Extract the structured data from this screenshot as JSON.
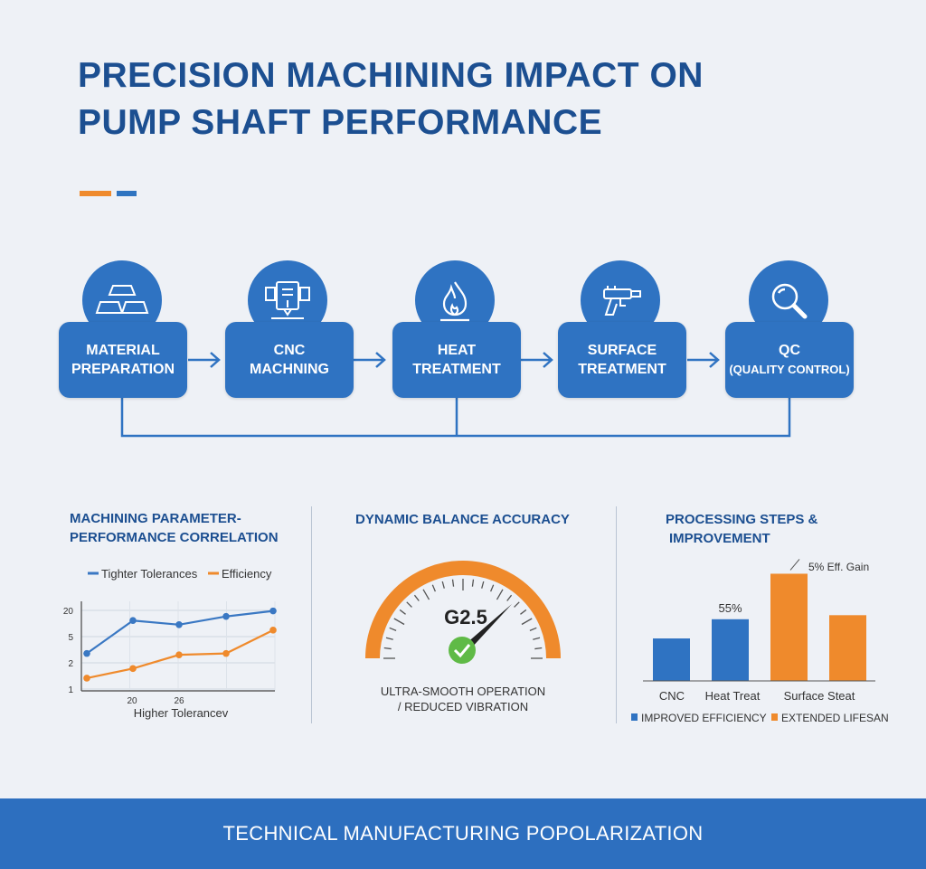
{
  "title": {
    "line1": "PRECISION MACHINING IMPACT ON",
    "line2": "PUMP SHAFT PERFORMANCE"
  },
  "colors": {
    "blue": "#2f73c2",
    "orange": "#ef8a2c",
    "navy": "#1c4f91",
    "footer": "#2d6fbf"
  },
  "flow": {
    "steps": [
      {
        "icon": "metal-ingots-icon",
        "line1": "MATERIAL",
        "line2": "PREPARATION"
      },
      {
        "icon": "cnc-machine-icon",
        "line1": "CNC",
        "line2": "MACHNING"
      },
      {
        "icon": "flame-icon",
        "line1": "HEAT",
        "line2": "TREATMENT"
      },
      {
        "icon": "spray-gun-icon",
        "line1": "SURFACE",
        "line2": "TREATMENT"
      },
      {
        "icon": "magnifier-icon",
        "line1": "QC",
        "line2": "(QUALITY CONTROL)"
      }
    ]
  },
  "panels": {
    "correlation": {
      "title_line1": "MACHINING PARAMETER-",
      "title_line2": "PERFORMANCE CORRELATION"
    },
    "balance": {
      "title": "DYNAMIC BALANCE ACCURACY",
      "gauge_value": "G2.5",
      "caption_line1": "ULTRA-SMOOTH OPERATION",
      "caption_line2": "/ REDUCED VIBRATION"
    },
    "steps": {
      "title_line1": "PROCESSING STEPS &",
      "title_line2": "IMPROVEMENT"
    }
  },
  "chart_data": [
    {
      "type": "line",
      "title": "",
      "legend": [
        "Tighter Tolerances",
        "Efficiency"
      ],
      "legend_placement": "top",
      "xlabel": "Higher Tolerancev",
      "x_ticks": [
        "20",
        "26"
      ],
      "y_ticks": [
        "20",
        "5",
        "2",
        "1"
      ],
      "grid": true,
      "series": [
        {
          "name": "Tighter Tolerances",
          "color": "#3a78c3",
          "values": [
            2.2,
            4.6,
            4.3,
            4.9,
            5.3
          ]
        },
        {
          "name": "Efficiency",
          "color": "#ef8a2c",
          "values": [
            0.4,
            1.1,
            2.1,
            2.2,
            3.9
          ]
        }
      ]
    },
    {
      "type": "bar",
      "title": "",
      "categories": [
        "CNC",
        "Heat Treat",
        "Surface Steat",
        ""
      ],
      "values": [
        4.2,
        6.1,
        10.6,
        6.5
      ],
      "colors": [
        "#2f73c2",
        "#2f73c2",
        "#ef8a2c",
        "#ef8a2c"
      ],
      "annotations": [
        {
          "text": "55%",
          "bar": 1
        },
        {
          "text": "5% Eff. Gain",
          "bar": 2
        }
      ],
      "legend": [
        {
          "label": "IMPROVED EFFICIENCY",
          "color": "#2f73c2"
        },
        {
          "label": "EXTENDED LIFESAN",
          "color": "#ef8a2c"
        }
      ],
      "legend_placement": "bottom",
      "ylim": [
        0,
        11
      ]
    }
  ],
  "footer": {
    "text": "TECHNICAL MANUFACTURING POPOLARIZATION"
  }
}
